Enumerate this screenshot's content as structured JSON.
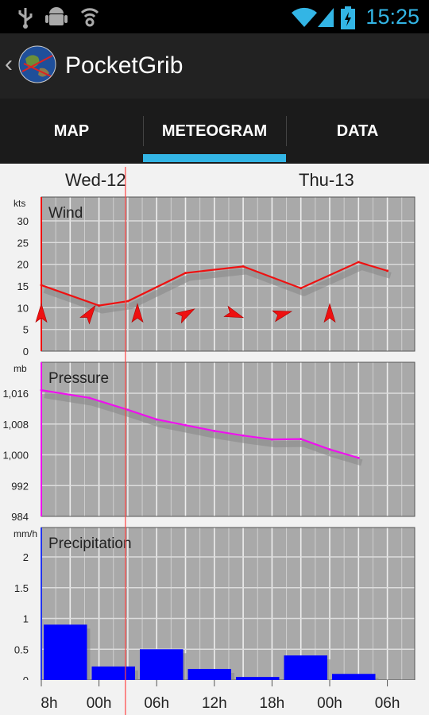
{
  "status_bar": {
    "time": "15:25",
    "icons": [
      "usb-icon",
      "android-debug-icon",
      "sync-icon",
      "wifi-icon",
      "signal-icon",
      "battery-icon"
    ],
    "accent_color": "#33b5e5"
  },
  "action_bar": {
    "title": "PocketGrib",
    "back_icon": "back-chevron-icon",
    "logo_icon": "earth-logo-icon"
  },
  "tabs": [
    {
      "label": "MAP",
      "selected": false
    },
    {
      "label": "METEOGRAM",
      "selected": true
    },
    {
      "label": "DATA",
      "selected": false
    }
  ],
  "days": [
    "Wed-12",
    "Thu-13"
  ],
  "time_axis": [
    "8h",
    "00h",
    "06h",
    "12h",
    "18h",
    "00h",
    "06h"
  ],
  "chart_data": [
    {
      "type": "line",
      "title": "Wind",
      "ylabel": "kts",
      "ylim": [
        0,
        35
      ],
      "yticks": [
        "30",
        "25",
        "20",
        "15",
        "10",
        "5",
        "0"
      ],
      "x_hours": [
        0,
        12,
        18,
        30,
        42,
        54,
        66,
        72
      ],
      "values": [
        15.2,
        10.5,
        11.5,
        18.0,
        19.5,
        14.5,
        20.5,
        18.5
      ],
      "arrow_hours": [
        0,
        10,
        20,
        30,
        40,
        50,
        60
      ],
      "arrow_directions_deg": [
        180,
        215,
        180,
        240,
        290,
        255,
        180
      ],
      "line_color": "#ee1111"
    },
    {
      "type": "line",
      "title": "Pressure",
      "ylabel": "mb",
      "ylim": [
        984,
        1023
      ],
      "yticks": [
        "1,016",
        "1,008",
        "1,000",
        "992",
        "984"
      ],
      "x_hours": [
        0,
        10,
        18,
        24,
        30,
        36,
        42,
        48,
        54,
        60,
        66
      ],
      "values": [
        1016.8,
        1014.8,
        1011.7,
        1009.2,
        1007.7,
        1006.2,
        1005.0,
        1004.0,
        1004.1,
        1001.4,
        999.2
      ],
      "line_color": "#ee11ee"
    },
    {
      "type": "bar",
      "title": "Precipitation",
      "ylabel": "mm/h",
      "ylim": [
        0,
        2.2
      ],
      "yticks": [
        "2",
        "1.5",
        "1",
        "0.5",
        "0"
      ],
      "bars": [
        {
          "start_hour": 0,
          "end_hour": 10,
          "value": 0.9
        },
        {
          "start_hour": 10,
          "end_hour": 20,
          "value": 0.22
        },
        {
          "start_hour": 20,
          "end_hour": 30,
          "value": 0.5
        },
        {
          "start_hour": 30,
          "end_hour": 40,
          "value": 0.18
        },
        {
          "start_hour": 40,
          "end_hour": 50,
          "value": 0.05
        },
        {
          "start_hour": 50,
          "end_hour": 60,
          "value": 0.4
        },
        {
          "start_hour": 60,
          "end_hour": 70,
          "value": 0.1
        }
      ],
      "bar_color": "#0000ff"
    }
  ],
  "current_time_hour": 17.5
}
